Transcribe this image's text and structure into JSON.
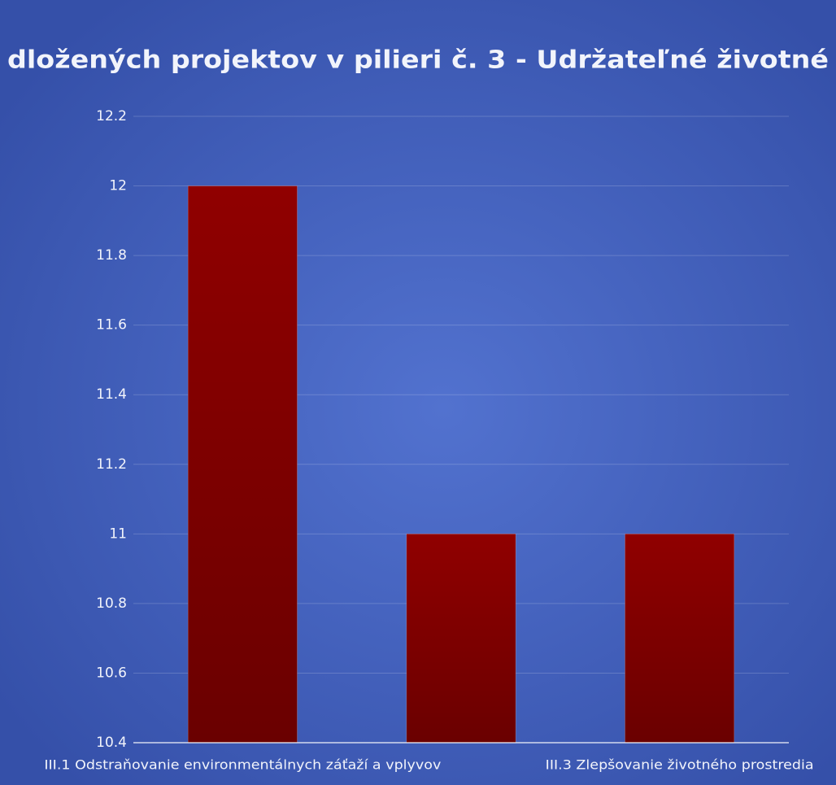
{
  "chart_data": {
    "type": "bar",
    "title": "dložených projektov v pilieri č. 3 - Udržateľné životné",
    "categories": [
      "III.1 Odstraňovanie environmentálnych záťaží a vplyvov",
      null,
      "III.3 Zlepšovanie životného prostredia"
    ],
    "values": [
      12,
      11,
      11
    ],
    "color": "#8b0000",
    "ylim": [
      10.4,
      12.2
    ],
    "yticks": [
      10.4,
      10.6,
      10.8,
      11,
      11.2,
      11.4,
      11.6,
      11.8,
      12,
      12.2
    ],
    "grid": true
  }
}
